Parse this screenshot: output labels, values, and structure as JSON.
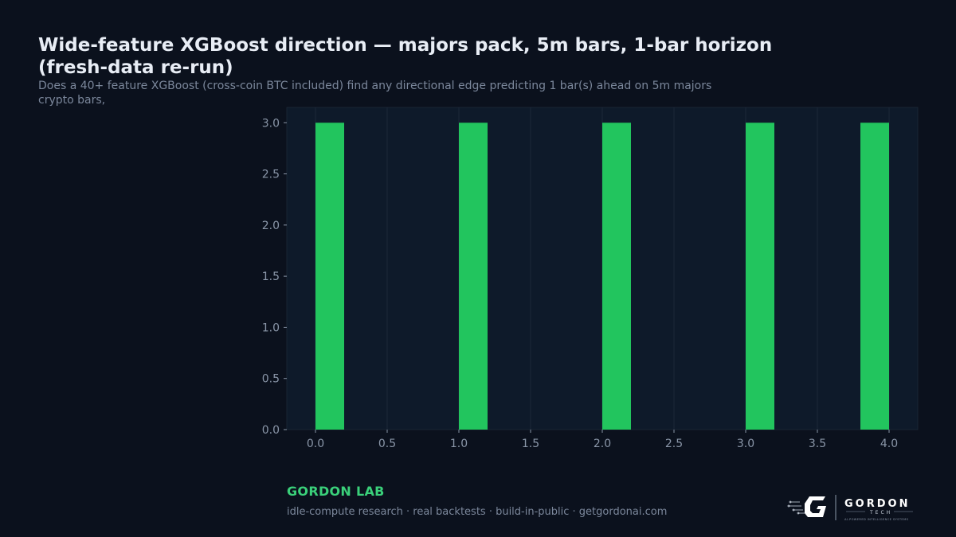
{
  "header": {
    "title": "Wide-feature XGBoost direction — majors pack, 5m bars, 1-bar horizon (fresh-data re-run)",
    "subtitle": "Does a 40+ feature XGBoost (cross-coin BTC included) find any directional edge predicting 1 bar(s) ahead on 5m majors crypto bars,"
  },
  "footer": {
    "brand": "GORDON LAB",
    "tagline": "idle-compute research · real backtests · build-in-public · getgordonai.com"
  },
  "logo": {
    "name": "GORDON",
    "sub": "TECH",
    "fine_print": "AI-POWERED INTELLIGENCE SYSTEMS"
  },
  "colors": {
    "background": "#0b111d",
    "plot_background": "#0e1a2a",
    "bar": "#22c55e",
    "grid": "#1c2838",
    "tick_text": "#8a96a8",
    "brand": "#3ad07a"
  },
  "chart_data": {
    "type": "bar",
    "title": "",
    "xlabel": "",
    "ylabel": "",
    "bars": [
      {
        "x_start": 0.0,
        "x_end": 0.2,
        "value": 3
      },
      {
        "x_start": 1.0,
        "x_end": 1.2,
        "value": 3
      },
      {
        "x_start": 2.0,
        "x_end": 2.2,
        "value": 3
      },
      {
        "x_start": 3.0,
        "x_end": 3.2,
        "value": 3
      },
      {
        "x_start": 3.8,
        "x_end": 4.0,
        "value": 3
      }
    ],
    "xlim": [
      -0.2,
      4.2
    ],
    "ylim": [
      0,
      3.15
    ],
    "xticks": [
      0.0,
      0.5,
      1.0,
      1.5,
      2.0,
      2.5,
      3.0,
      3.5,
      4.0
    ],
    "xtick_labels": [
      "0.0",
      "0.5",
      "1.0",
      "1.5",
      "2.0",
      "2.5",
      "3.0",
      "3.5",
      "4.0"
    ],
    "yticks": [
      0.0,
      0.5,
      1.0,
      1.5,
      2.0,
      2.5,
      3.0
    ],
    "ytick_labels": [
      "0.0",
      "0.5",
      "1.0",
      "1.5",
      "2.0",
      "2.5",
      "3.0"
    ],
    "grid": "vertical"
  }
}
